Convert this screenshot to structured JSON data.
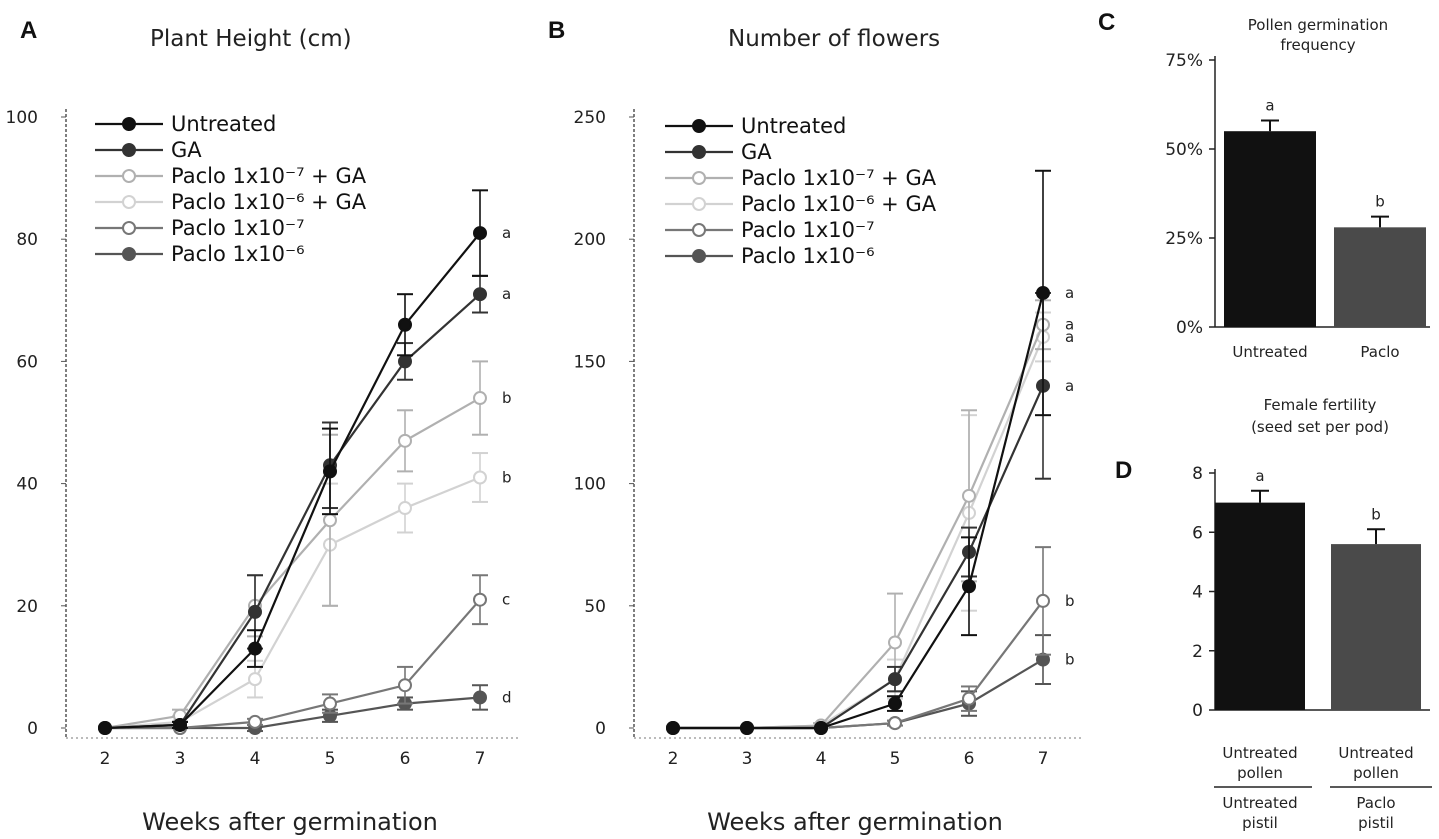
{
  "chart_data": [
    {
      "type": "line",
      "panel": "A",
      "title": "Plant Height (cm)",
      "xlabel": "Weeks after germination",
      "ylabel": "",
      "x": [
        2,
        3,
        4,
        5,
        6,
        7
      ],
      "xticks": [
        "2",
        "3",
        "4",
        "5",
        "6",
        "7"
      ],
      "ylim": [
        0,
        100
      ],
      "yticks": [
        "0",
        "20",
        "40",
        "60",
        "80",
        "100"
      ],
      "legend_placement": "top-left",
      "series": [
        {
          "name": "Untreated",
          "color": "#111111",
          "marker": "filled",
          "values": [
            0,
            0.5,
            13,
            42,
            66,
            81
          ],
          "err": [
            0,
            0.5,
            3,
            7,
            5,
            7
          ],
          "letter": "a"
        },
        {
          "name": "GA",
          "color": "#333333",
          "marker": "filled",
          "values": [
            0,
            0.5,
            19,
            43,
            60,
            71
          ],
          "err": [
            0,
            0.5,
            6,
            7,
            3,
            3
          ],
          "letter": "a"
        },
        {
          "name": "Paclo 1x10⁻⁷ + GA",
          "color": "#b0b0b0",
          "marker": "open",
          "values": [
            0,
            2,
            20,
            34,
            47,
            54
          ],
          "err": [
            0,
            1,
            5,
            14,
            5,
            6
          ],
          "letter": "b"
        },
        {
          "name": "Paclo 1x10⁻⁶ + GA",
          "color": "#d2d2d2",
          "marker": "open",
          "values": [
            0,
            1,
            8,
            30,
            36,
            41
          ],
          "err": [
            0,
            1,
            3,
            10,
            4,
            4
          ],
          "letter": "b"
        },
        {
          "name": "Paclo 1x10⁻⁷",
          "color": "#777777",
          "marker": "open",
          "values": [
            0,
            0,
            1,
            4,
            7,
            21
          ],
          "err": [
            0,
            0,
            0.5,
            1.5,
            3,
            4
          ],
          "letter": "c"
        },
        {
          "name": "Paclo 1x10⁻⁶",
          "color": "#555555",
          "marker": "filled",
          "values": [
            0,
            0,
            0,
            2,
            4,
            5
          ],
          "err": [
            0,
            0,
            0.5,
            1,
            1,
            2
          ],
          "letter": "d"
        }
      ]
    },
    {
      "type": "line",
      "panel": "B",
      "title": "Number of flowers",
      "xlabel": "Weeks after germination",
      "ylabel": "",
      "x": [
        2,
        3,
        4,
        5,
        6,
        7
      ],
      "xticks": [
        "2",
        "3",
        "4",
        "5",
        "6",
        "7"
      ],
      "ylim": [
        0,
        250
      ],
      "yticks": [
        "0",
        "50",
        "100",
        "150",
        "200",
        "250"
      ],
      "legend_placement": "top-left",
      "series": [
        {
          "name": "Untreated",
          "color": "#111111",
          "marker": "filled",
          "values": [
            0,
            0,
            0,
            10,
            58,
            178
          ],
          "err": [
            0,
            0,
            0,
            3,
            20,
            50
          ],
          "letter": "a"
        },
        {
          "name": "GA",
          "color": "#333333",
          "marker": "filled",
          "values": [
            0,
            0,
            0,
            20,
            72,
            140
          ],
          "err": [
            0,
            0,
            0,
            5,
            10,
            38
          ],
          "letter": "a"
        },
        {
          "name": "Paclo 1x10⁻⁷ + GA",
          "color": "#b0b0b0",
          "marker": "open",
          "values": [
            0,
            0,
            1,
            35,
            95,
            165
          ],
          "err": [
            0,
            0,
            1,
            20,
            35,
            10
          ],
          "letter": "a"
        },
        {
          "name": "Paclo 1x10⁻⁶ + GA",
          "color": "#d2d2d2",
          "marker": "open",
          "values": [
            0,
            0,
            1,
            20,
            88,
            160
          ],
          "err": [
            0,
            0,
            1,
            8,
            40,
            10
          ],
          "letter": "a"
        },
        {
          "name": "Paclo 1x10⁻⁷",
          "color": "#777777",
          "marker": "open",
          "values": [
            0,
            0,
            0,
            2,
            12,
            52
          ],
          "err": [
            0,
            0,
            0,
            1,
            5,
            22
          ],
          "letter": "b"
        },
        {
          "name": "Paclo 1x10⁻⁶",
          "color": "#555555",
          "marker": "filled",
          "values": [
            0,
            0,
            0,
            2,
            10,
            28
          ],
          "err": [
            0,
            0,
            0,
            1,
            5,
            10
          ],
          "letter": "b"
        }
      ]
    },
    {
      "type": "bar",
      "panel": "C",
      "title": "Pollen germination frequency",
      "categories": [
        "Untreated",
        "Paclo"
      ],
      "values": [
        0.55,
        0.28
      ],
      "err": [
        0.03,
        0.03
      ],
      "letters": [
        "a",
        "b"
      ],
      "ylim": [
        0,
        0.75
      ],
      "yticks": [
        "0%",
        "25%",
        "50%",
        "75%"
      ],
      "colors": [
        "#111111",
        "#4a4a4a"
      ]
    },
    {
      "type": "bar",
      "panel": "D",
      "title": "Female fertility (seed set per pod)",
      "categories": [
        "Untreated pollen",
        "Untreated pollen"
      ],
      "group_labels": [
        "Untreated pistil",
        "Paclo pistil"
      ],
      "values": [
        7.0,
        5.6
      ],
      "err": [
        0.4,
        0.5
      ],
      "letters": [
        "a",
        "b"
      ],
      "ylim": [
        0,
        8
      ],
      "yticks": [
        "0",
        "2",
        "4",
        "6",
        "8"
      ],
      "colors": [
        "#111111",
        "#4a4a4a"
      ]
    }
  ],
  "panels": {
    "A": {
      "label": "A",
      "title": "Plant Height (cm)",
      "xlabel": "Weeks after germination"
    },
    "B": {
      "label": "B",
      "title": "Number of flowers",
      "xlabel": "Weeks after germination"
    },
    "C": {
      "label": "C",
      "title_line1": "Pollen germination",
      "title_line2": "frequency"
    },
    "D": {
      "label": "D",
      "title_line1": "Female fertility",
      "title_line2": "(seed set per pod)",
      "sub1": "Untreated",
      "sub2": "pollen",
      "sub3": "Untreated",
      "sub4": "pollen",
      "grp1a": "Untreated",
      "grp1b": "pistil",
      "grp2a": "Paclo",
      "grp2b": "pistil"
    }
  }
}
